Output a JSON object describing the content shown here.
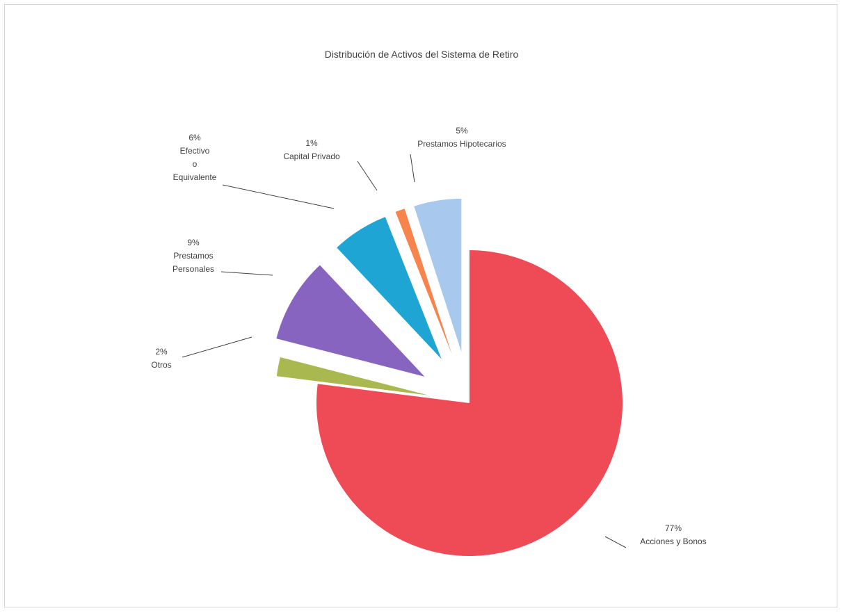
{
  "chart_data": {
    "type": "pie",
    "title": "Distribución de Activos del Sistema de Retiro",
    "legend": "none",
    "slices": [
      {
        "label": "Acciones y Bonos",
        "value": 77,
        "pct_label": "77%",
        "color": "#ee4b57"
      },
      {
        "label": "Otros",
        "value": 2,
        "pct_label": "2%",
        "color": "#a9b84f"
      },
      {
        "label": "Prestamos Personales",
        "value": 9,
        "pct_label": "9%",
        "color": "#8764c0"
      },
      {
        "label": "Efectivo o Equivalente",
        "value": 6,
        "pct_label": "6%",
        "color": "#1ea5d4"
      },
      {
        "label": "Capital Privado",
        "value": 1,
        "pct_label": "1%",
        "color": "#f7834d"
      },
      {
        "label": "Prestamos Hipotecarios",
        "value": 5,
        "pct_label": "5%",
        "color": "#a9c8ee"
      }
    ],
    "label_lines": {
      "Acciones y Bonos": [
        "77%",
        "Acciones y Bonos"
      ],
      "Otros": [
        "2%",
        "Otros"
      ],
      "Prestamos Personales": [
        "9%",
        "Prestamos",
        "Personales"
      ],
      "Efectivo o Equivalente": [
        "6%",
        "Efectivo",
        "o",
        "Equivalente"
      ],
      "Capital Privado": [
        "1%",
        "Capital Privado"
      ],
      "Prestamos Hipotecarios": [
        "5%",
        "Prestamos Hipotecarios"
      ]
    }
  }
}
